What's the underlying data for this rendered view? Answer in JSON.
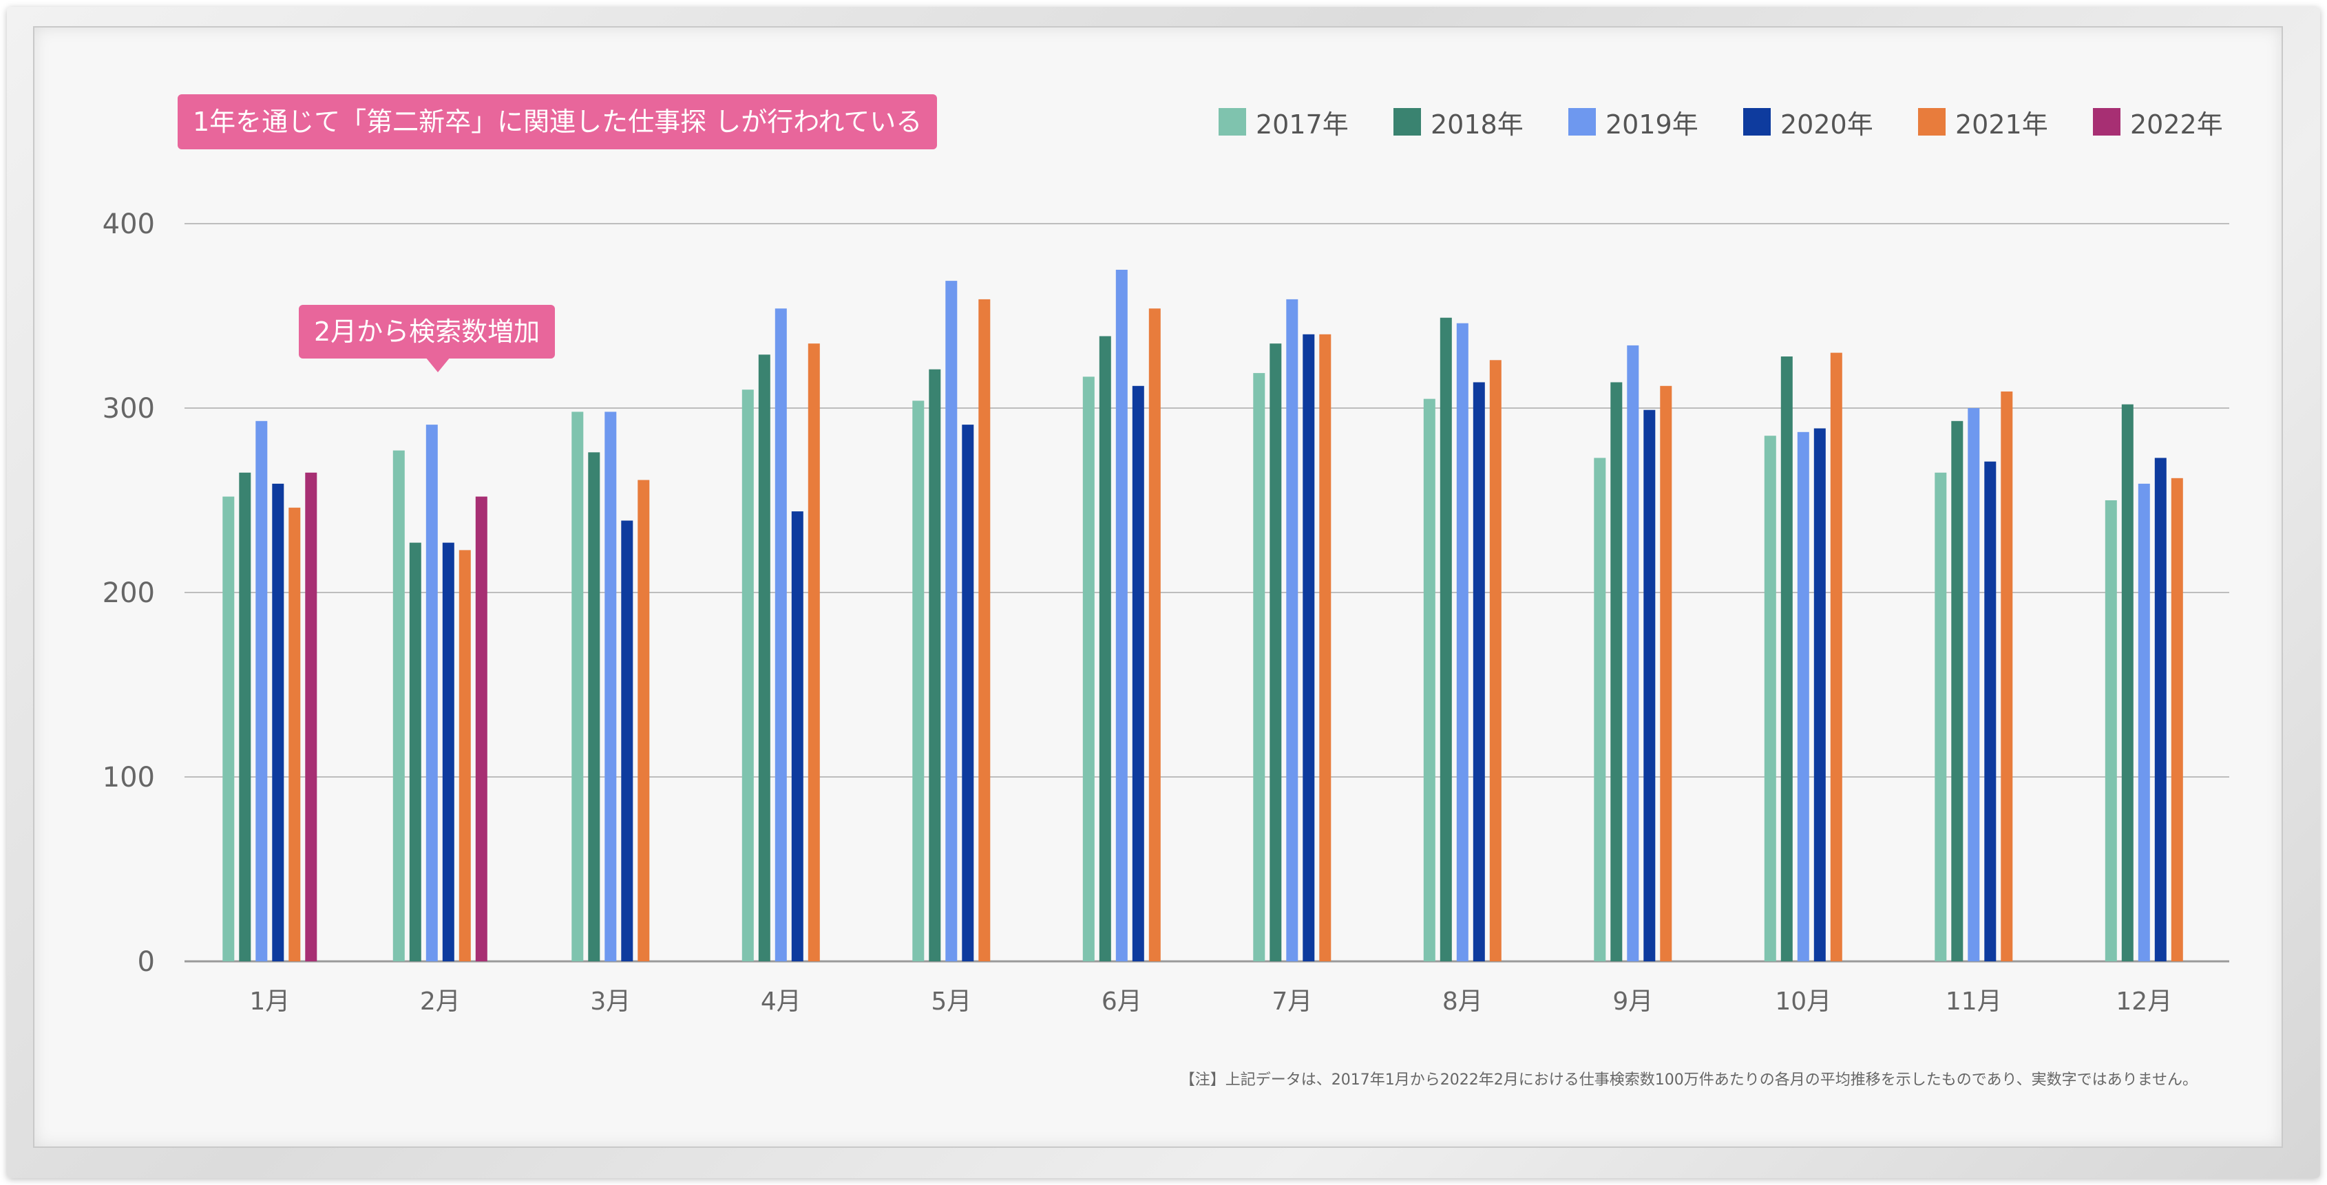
{
  "chart_data": {
    "type": "bar",
    "title": "1年を通じて「第二新卒」に関連した仕事探 しが行われている",
    "annotation": "2月から検索数増加",
    "note": "【注】上記データは、2017年1月から2022年2月における仕事検索数100万件あたりの各月の平均推移を示したものであり、実数字ではありません。",
    "categories": [
      "1月",
      "2月",
      "3月",
      "4月",
      "5月",
      "6月",
      "7月",
      "8月",
      "9月",
      "10月",
      "11月",
      "12月"
    ],
    "ylim": [
      0,
      400
    ],
    "yticks": [
      0,
      100,
      200,
      300,
      400
    ],
    "ytick_labels": [
      "0",
      "100",
      "200",
      "300",
      "400"
    ],
    "grid": true,
    "legend_position": "top-right",
    "series": [
      {
        "name": "2017年",
        "color": "#7fc3ae",
        "values": [
          252,
          277,
          298,
          310,
          304,
          317,
          319,
          305,
          273,
          285,
          265,
          250
        ]
      },
      {
        "name": "2018年",
        "color": "#3a8370",
        "values": [
          265,
          227,
          276,
          329,
          321,
          339,
          335,
          349,
          314,
          328,
          293,
          302
        ]
      },
      {
        "name": "2019年",
        "color": "#6e98ef",
        "values": [
          293,
          291,
          298,
          354,
          369,
          375,
          359,
          346,
          334,
          287,
          300,
          259
        ]
      },
      {
        "name": "2020年",
        "color": "#0e3b9e",
        "values": [
          259,
          227,
          239,
          244,
          291,
          312,
          340,
          314,
          299,
          289,
          271,
          273
        ]
      },
      {
        "name": "2021年",
        "color": "#e87c3c",
        "values": [
          246,
          223,
          261,
          335,
          359,
          354,
          340,
          326,
          312,
          330,
          309,
          262
        ]
      },
      {
        "name": "2022年",
        "color": "#a72f73",
        "values": [
          265,
          252,
          null,
          null,
          null,
          null,
          null,
          null,
          null,
          null,
          null,
          null
        ]
      }
    ]
  }
}
